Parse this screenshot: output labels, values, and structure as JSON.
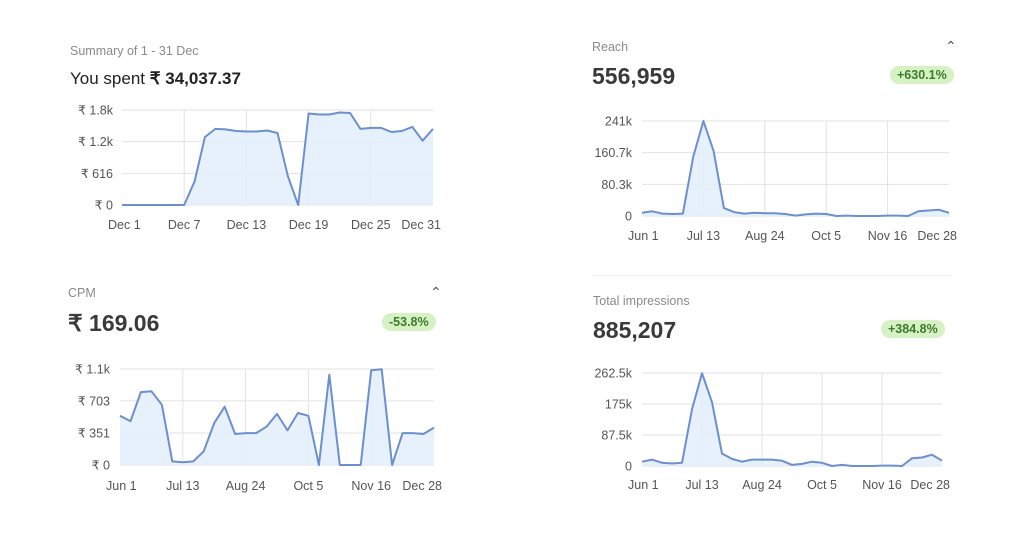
{
  "colors": {
    "line": "#6c8fd0",
    "fill": "#e2eefc",
    "grid": "#e2e2e2",
    "badge_bg": "#d6f2c4",
    "badge_text": "#3d7a2a"
  },
  "spend": {
    "summary": "Summary of 1 - 31 Dec",
    "prefix": "You spent",
    "amount": "₹ 34,037.37"
  },
  "reach": {
    "label": "Reach",
    "value": "556,959",
    "change": "+630.1%",
    "collapse_icon": "chevron-up-icon"
  },
  "cpm": {
    "label": "CPM",
    "value": "₹ 169.06",
    "change": "-53.8%",
    "collapse_icon": "chevron-up-icon"
  },
  "impressions": {
    "label": "Total impressions",
    "value": "885,207",
    "change": "+384.8%"
  },
  "chart_data": [
    {
      "id": "spend",
      "type": "area",
      "xticks": [
        "Dec 1",
        "Dec 7",
        "Dec 13",
        "Dec 19",
        "Dec 25",
        "Dec 31"
      ],
      "yticks": [
        "₹ 0",
        "₹ 616",
        "₹ 1.2k",
        "₹ 1.8k"
      ],
      "ytick_values": [
        0,
        616,
        1232,
        1848
      ],
      "ylim": [
        0,
        1848
      ],
      "grid": true,
      "x": "Dec 1 – Dec 31 (daily)",
      "values": [
        0,
        0,
        0,
        0,
        0,
        0,
        0,
        460,
        1320,
        1480,
        1470,
        1440,
        1430,
        1430,
        1450,
        1400,
        560,
        0,
        1780,
        1760,
        1760,
        1800,
        1790,
        1480,
        1500,
        1500,
        1420,
        1440,
        1520,
        1250,
        1480
      ]
    },
    {
      "id": "reach",
      "type": "area",
      "xticks": [
        "Jun 1",
        "Jul 13",
        "Aug 24",
        "Oct 5",
        "Nov 16",
        "Dec 28"
      ],
      "yticks": [
        "0",
        "80.3k",
        "160.7k",
        "241k"
      ],
      "ytick_values": [
        0,
        80300,
        160700,
        241000
      ],
      "ylim": [
        0,
        241000
      ],
      "grid": true,
      "values": [
        8000,
        12000,
        6000,
        5000,
        6000,
        150000,
        241000,
        165000,
        20000,
        10000,
        6000,
        8000,
        7000,
        7000,
        5000,
        1000,
        4000,
        6000,
        5000,
        0,
        1000,
        0,
        0,
        0,
        1000,
        1000,
        0,
        12000,
        14000,
        16000,
        8000
      ]
    },
    {
      "id": "cpm",
      "type": "area",
      "xticks": [
        "Jun 1",
        "Jul 13",
        "Aug 24",
        "Oct 5",
        "Nov 16",
        "Dec 28"
      ],
      "yticks": [
        "₹ 0",
        "₹ 351",
        "₹ 703",
        "₹ 1.1k"
      ],
      "ytick_values": [
        0,
        351,
        703,
        1053
      ],
      "ylim": [
        0,
        1053
      ],
      "grid": true,
      "values": [
        540,
        480,
        800,
        810,
        660,
        40,
        30,
        40,
        150,
        460,
        640,
        340,
        350,
        350,
        420,
        560,
        380,
        570,
        540,
        0,
        990,
        0,
        0,
        0,
        1040,
        1050,
        0,
        350,
        350,
        340,
        410
      ]
    },
    {
      "id": "impressions",
      "type": "area",
      "xticks": [
        "Jun 1",
        "Jul 13",
        "Aug 24",
        "Oct 5",
        "Nov 16",
        "Dec 28"
      ],
      "yticks": [
        "0",
        "87.5k",
        "175k",
        "262.5k"
      ],
      "ytick_values": [
        0,
        87500,
        175000,
        262500
      ],
      "ylim": [
        0,
        262500
      ],
      "grid": true,
      "values": [
        12000,
        18000,
        9000,
        7000,
        9000,
        160000,
        262000,
        180000,
        35000,
        20000,
        12000,
        18000,
        18000,
        18000,
        15000,
        3000,
        6000,
        12000,
        9000,
        0,
        3000,
        0,
        0,
        0,
        1000,
        1000,
        0,
        22000,
        24000,
        32000,
        15000
      ]
    }
  ]
}
